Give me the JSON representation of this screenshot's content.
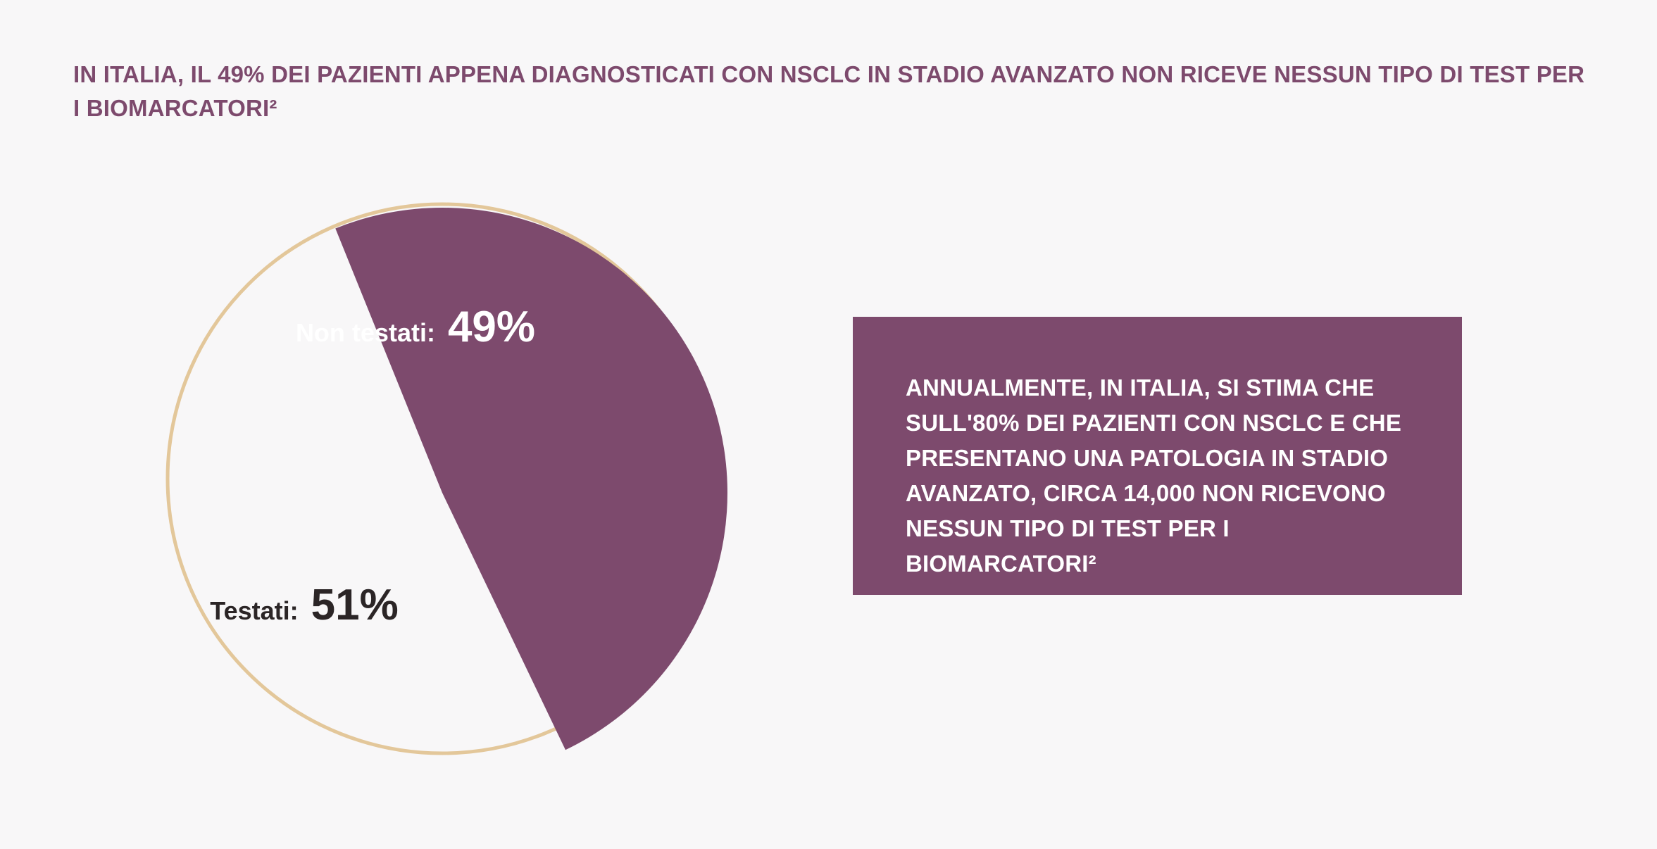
{
  "headline": "IN ITALIA, IL 49% DEI PAZIENTI APPENA DIAGNOSTICATI CON NSCLC IN STADIO AVANZATO NON RICEVE NESSUN TIPO DI TEST PER I BIOMARCATORI²",
  "info_box": {
    "text": "ANNUALMENTE, IN ITALIA, SI STIMA CHE SULL'80% DEI PAZIENTI CON NSCLC E CHE PRESENTANO UNA PATOLOGIA IN STADIO AVANZATO, CIRCA 14,000 NON RICEVONO NESSUN TIPO DI TEST PER I BIOMARCATORI²"
  },
  "colors": {
    "accent": "#7d4a6d",
    "outline": "#e3c79a",
    "background": "#f8f7f8",
    "label_dark": "#2b2526",
    "label_light": "#ffffff"
  },
  "chart_data": {
    "type": "pie",
    "title": "",
    "slices": [
      {
        "label": "Non testati:",
        "value_text": "49%",
        "value": 49,
        "color": "#7d4a6d",
        "label_color": "#ffffff"
      },
      {
        "label": "Testati:",
        "value_text": "51%",
        "value": 51,
        "color": "#f8f7f8",
        "label_color": "#2b2526"
      }
    ]
  }
}
